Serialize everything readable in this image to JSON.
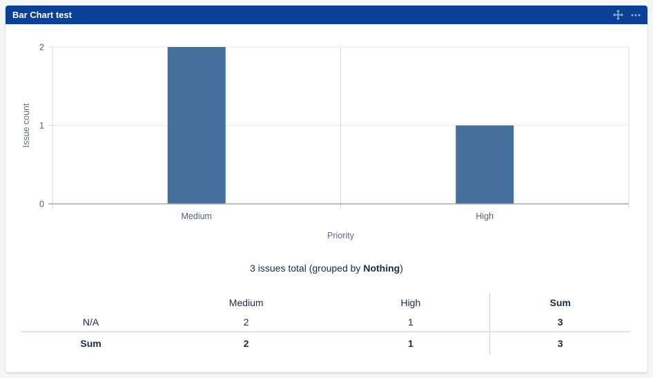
{
  "gadget": {
    "title": "Bar Chart test",
    "header_color": "#0C3F96",
    "icon_color": "#9BAED8",
    "icons": [
      {
        "name": "move-icon",
        "meaning": "drag gadget"
      },
      {
        "name": "ellipsis-icon",
        "meaning": "gadget menu"
      }
    ]
  },
  "chart_data": {
    "type": "bar",
    "categories": [
      "Medium",
      "High"
    ],
    "values": [
      2,
      1
    ],
    "title": "",
    "xlabel": "Priority",
    "ylabel": "Issue count",
    "ylim": [
      0,
      2
    ],
    "yticks": [
      0,
      1,
      2
    ],
    "bar_color": "#46709C",
    "grid": true,
    "legend": false,
    "tick_label_color": "#54606E",
    "axis_title_color": "#5E6C84"
  },
  "summary": {
    "prefix": "3 issues total (grouped by ",
    "group": "Nothing",
    "suffix": ")"
  },
  "table": {
    "headers": [
      "",
      "Medium",
      "High",
      "Sum"
    ],
    "bold_columns": [
      3
    ],
    "rows": [
      {
        "label": "N/A",
        "values": [
          "2",
          "1",
          "3"
        ],
        "bold": false,
        "divider_above": false
      },
      {
        "label": "Sum",
        "values": [
          "2",
          "1",
          "3"
        ],
        "bold": true,
        "divider_above": true
      }
    ]
  },
  "colors": {
    "page_background": "#F4F5F7",
    "card_background": "#FFFFFF",
    "text_navy": "#172B4D",
    "gridline": "#E7E8EB",
    "axis_line": "#A2A6AC",
    "vertical_line": "#D7D9DD",
    "table_divider": "#DFE1E6"
  }
}
